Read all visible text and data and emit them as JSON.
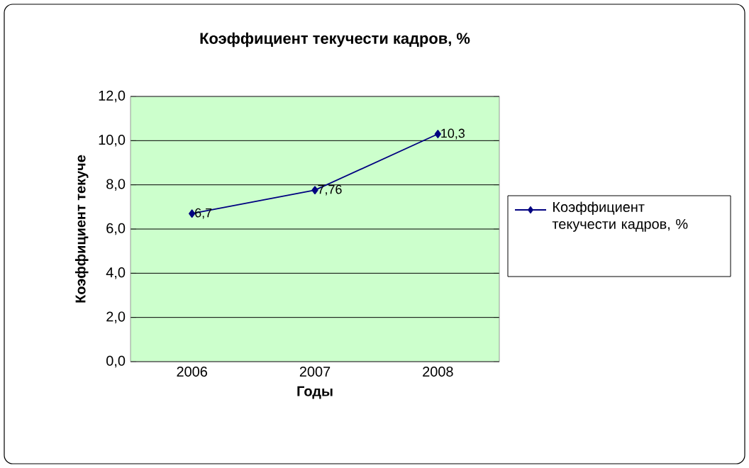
{
  "chart_data": {
    "type": "line",
    "title": "Коэффициент текучести кадров, %",
    "xlabel": "Годы",
    "ylabel": "Коэффициент текуче",
    "categories": [
      "2006",
      "2007",
      "2008"
    ],
    "series": [
      {
        "name": "Коэффициент текучести кадров, %",
        "color": "#000080",
        "values": [
          6.7,
          7.76,
          10.3
        ],
        "value_labels": [
          "6,7",
          "7,76",
          "10,3"
        ]
      }
    ],
    "ylim": [
      0,
      12
    ],
    "yticks": [
      {
        "value": 0,
        "label": "0,0"
      },
      {
        "value": 2,
        "label": "2,0"
      },
      {
        "value": 4,
        "label": "4,0"
      },
      {
        "value": 6,
        "label": "6,0"
      },
      {
        "value": 8,
        "label": "8,0"
      },
      {
        "value": 10,
        "label": "10,0"
      },
      {
        "value": 12,
        "label": "12,0"
      }
    ],
    "grid": "y",
    "legend": "right",
    "marker": "diamond",
    "line_style": "solid"
  }
}
